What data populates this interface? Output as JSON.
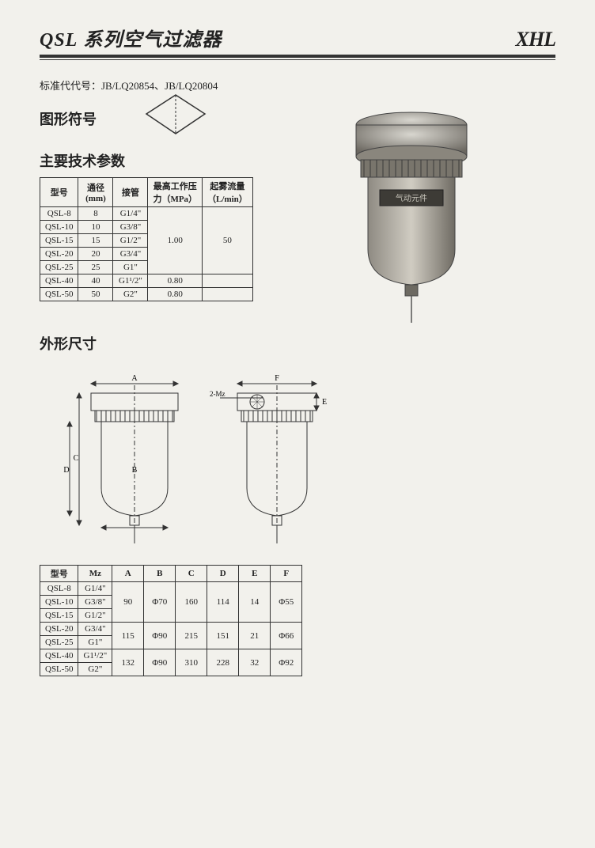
{
  "header": {
    "title_prefix": "QSL",
    "title_rest": " 系列空气过滤器",
    "logo": "XHL"
  },
  "standard_line": "标准代代号：JB/LQ20854、JB/LQ20804",
  "labels": {
    "graphic_symbol": "图形符号",
    "main_specs": "主要技术参数",
    "outer_dims": "外形尺寸"
  },
  "spec_table": {
    "headers": [
      "型号",
      "通径\n(mm)",
      "接管",
      "最高工作压\n力（MPa）",
      "起雾流量\n（L/min）"
    ],
    "rows": [
      [
        "QSL-8",
        "8",
        "G1/4\"",
        {
          "span": 5,
          "val": "1.00"
        },
        {
          "span": 5,
          "val": "50"
        }
      ],
      [
        "QSL-10",
        "10",
        "G3/8\"",
        null,
        null
      ],
      [
        "QSL-15",
        "15",
        "G1/2\"",
        null,
        null
      ],
      [
        "QSL-20",
        "20",
        "G3/4\"",
        null,
        null
      ],
      [
        "QSL-25",
        "25",
        "G1\"",
        null,
        null
      ],
      [
        "QSL-40",
        "40",
        "G1¹/2\"",
        "0.80",
        ""
      ],
      [
        "QSL-50",
        "50",
        "G2\"",
        "0.80",
        ""
      ]
    ]
  },
  "dim_table": {
    "headers": [
      "型号",
      "Mz",
      "A",
      "B",
      "C",
      "D",
      "E",
      "F"
    ],
    "rows": [
      [
        "QSL-8",
        "G1/4\"",
        {
          "span": 3,
          "val": "90"
        },
        {
          "span": 3,
          "val": "Φ70"
        },
        {
          "span": 3,
          "val": "160"
        },
        {
          "span": 3,
          "val": "114"
        },
        {
          "span": 3,
          "val": "14"
        },
        {
          "span": 3,
          "val": "Φ55"
        }
      ],
      [
        "QSL-10",
        "G3/8\"",
        null,
        null,
        null,
        null,
        null,
        null
      ],
      [
        "QSL-15",
        "G1/2\"",
        null,
        null,
        null,
        null,
        null,
        null
      ],
      [
        "QSL-20",
        "G3/4\"",
        {
          "span": 2,
          "val": "115"
        },
        {
          "span": 2,
          "val": "Φ90"
        },
        {
          "span": 2,
          "val": "215"
        },
        {
          "span": 2,
          "val": "151"
        },
        {
          "span": 2,
          "val": "21"
        },
        {
          "span": 2,
          "val": "Φ66"
        }
      ],
      [
        "QSL-25",
        "G1\"",
        null,
        null,
        null,
        null,
        null,
        null
      ],
      [
        "QSL-40",
        "G1¹/2\"",
        {
          "span": 2,
          "val": "132"
        },
        {
          "span": 2,
          "val": "Φ90"
        },
        {
          "span": 2,
          "val": "310"
        },
        {
          "span": 2,
          "val": "228"
        },
        {
          "span": 2,
          "val": "32"
        },
        {
          "span": 2,
          "val": "Φ92"
        }
      ],
      [
        "QSL-50",
        "G2\"",
        null,
        null,
        null,
        null,
        null,
        null
      ]
    ]
  },
  "drawing_labels": {
    "A": "A",
    "B": "B",
    "C": "C",
    "D": "D",
    "E": "E",
    "F": "F",
    "Mz": "2-Mz"
  },
  "colors": {
    "ink": "#333333",
    "page": "#f2f1ec"
  }
}
